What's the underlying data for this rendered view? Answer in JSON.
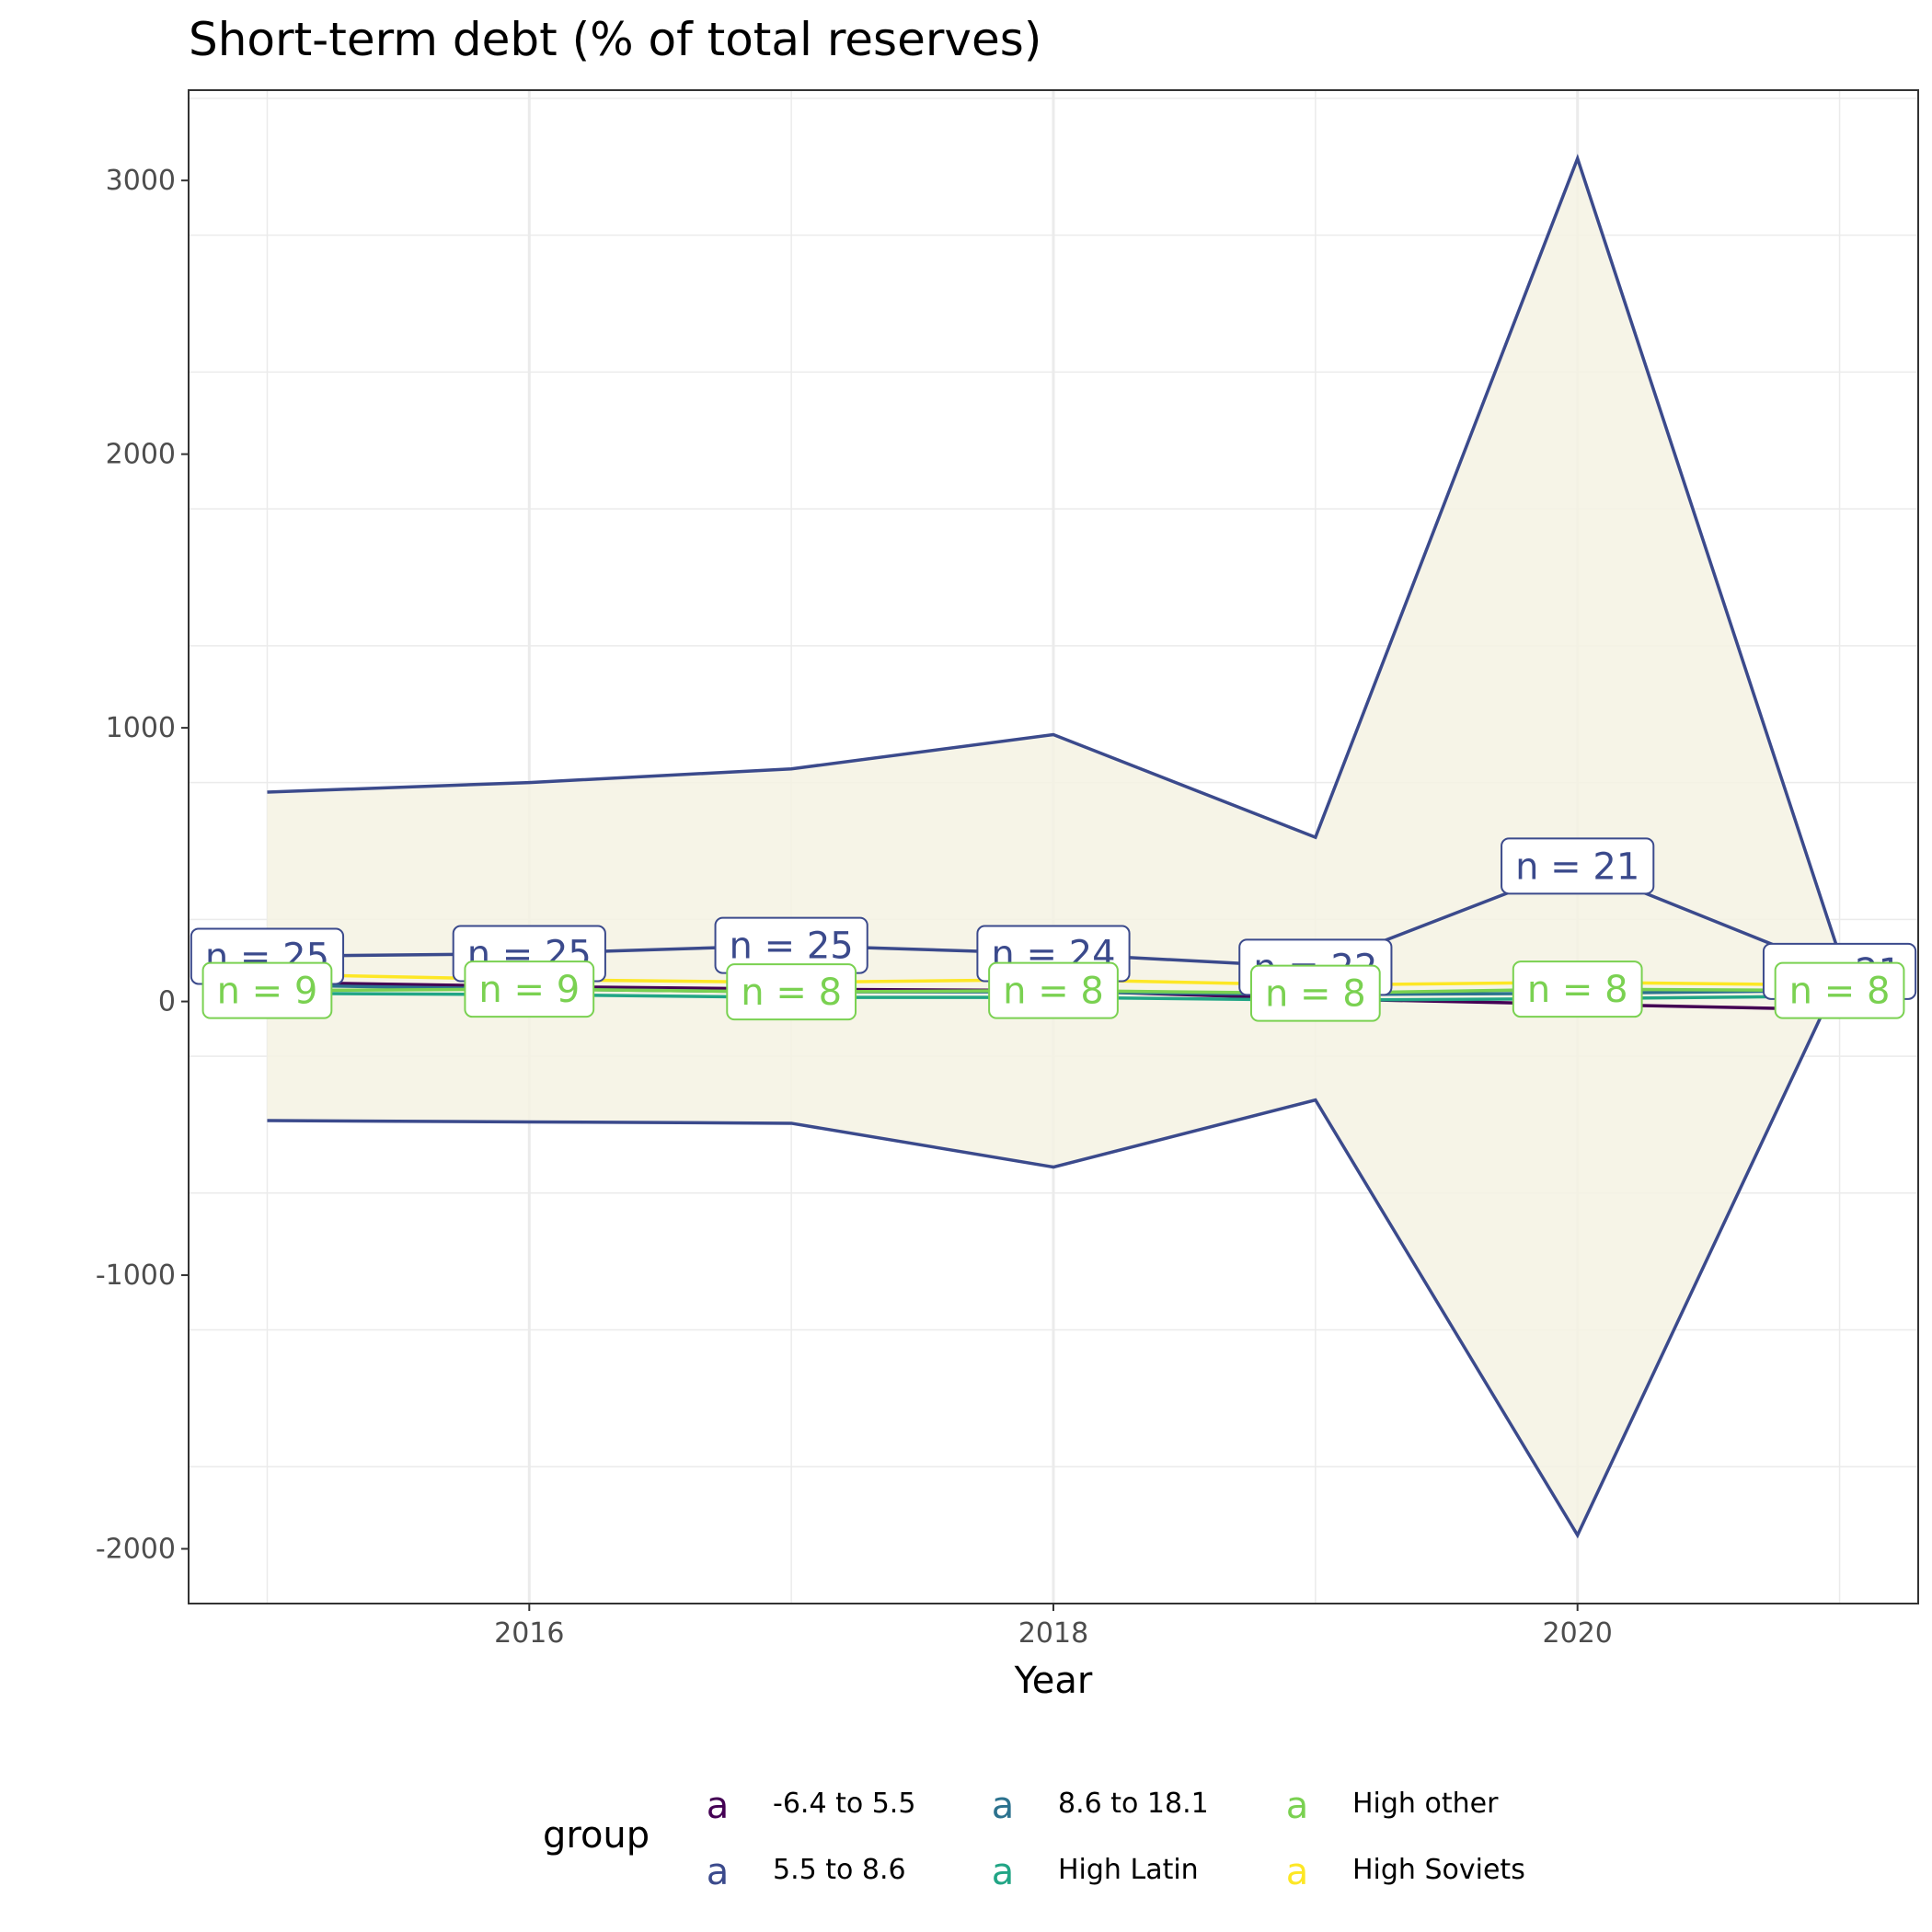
{
  "chart_data": {
    "type": "line",
    "title": "Short-term debt (% of total reserves)",
    "xlabel": "Year",
    "ylabel": "",
    "x": [
      2015,
      2016,
      2017,
      2018,
      2019,
      2020,
      2021
    ],
    "xlim": [
      2014.7,
      2021.3
    ],
    "ylim": [
      -2200,
      3330
    ],
    "x_ticks": [
      2016,
      2018,
      2020
    ],
    "y_ticks": [
      -2000,
      -1000,
      0,
      1000,
      2000,
      3000
    ],
    "grid": true,
    "legend_position": "bottom",
    "legend_title": "group",
    "legend_key_glyph": "a",
    "band": {
      "series": "5.5 to 8.6",
      "fill": "#f5f2e3",
      "upper": [
        765,
        800,
        850,
        975,
        600,
        3080,
        170
      ],
      "lower": [
        -435,
        -440,
        -445,
        -605,
        -360,
        -1950,
        90
      ]
    },
    "series": [
      {
        "name": "-6.4 to 5.5",
        "color": "#440154",
        "values": [
          70,
          55,
          45,
          40,
          10,
          -10,
          -30
        ],
        "n_labels": []
      },
      {
        "name": "5.5 to 8.6",
        "color": "#3b4a8c",
        "values": [
          165,
          175,
          205,
          175,
          125,
          495,
          110
        ],
        "n_labels": [
          "n = 25",
          "n = 25",
          "n = 25",
          "n = 24",
          "n = 22",
          "n = 21",
          "n = 21"
        ]
      },
      {
        "name": "8.6 to 18.1",
        "color": "#2c728e",
        "values": [
          60,
          45,
          35,
          35,
          25,
          30,
          40
        ],
        "n_labels": []
      },
      {
        "name": "High Latin",
        "color": "#21a585",
        "values": [
          30,
          25,
          15,
          15,
          5,
          10,
          20
        ],
        "n_labels": []
      },
      {
        "name": "High other",
        "color": "#7ad151",
        "values": [
          40,
          45,
          35,
          40,
          30,
          45,
          40
        ],
        "n_labels": [
          "n = 9",
          "n = 9",
          "n = 8",
          "n = 8",
          "n = 8",
          "n = 8",
          "n = 8"
        ]
      },
      {
        "name": "High Soviets",
        "color": "#fde725",
        "values": [
          100,
          80,
          70,
          80,
          60,
          70,
          60
        ],
        "n_labels": []
      }
    ]
  }
}
